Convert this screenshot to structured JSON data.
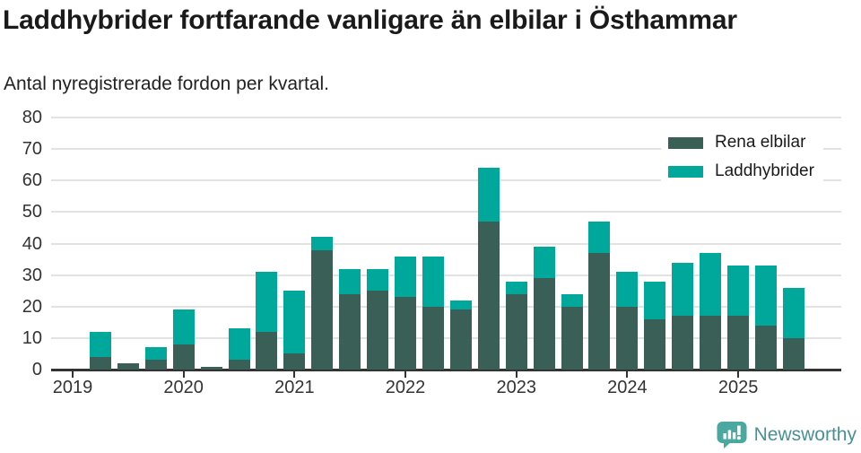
{
  "header": {
    "title": "Laddhybrider fortfarande vanligare än elbilar i Östhammar",
    "subtitle": "Antal nyregistrerade fordon per kvartal."
  },
  "colors": {
    "elbilar": "#3a5f57",
    "laddhybrider": "#00a89c",
    "axis_text": "#333333",
    "gridline": "#e2e2e2",
    "title_text": "#1a1a1a",
    "logo_bubble": "#4aa8a0",
    "logo_text": "#4a9097"
  },
  "legend": {
    "items": [
      {
        "label": "Rena elbilar",
        "color": "#3a5f57"
      },
      {
        "label": "Laddhybrider",
        "color": "#00a89c"
      }
    ]
  },
  "footer": {
    "brand": "Newsworthy"
  },
  "chart_data": {
    "type": "bar",
    "stacked": true,
    "title": "Laddhybrider fortfarande vanligare än elbilar i Östhammar",
    "subtitle": "Antal nyregistrerade fordon per kvartal.",
    "categories": [
      "2019 Q1",
      "2019 Q2",
      "2019 Q3",
      "2019 Q4",
      "2020 Q1",
      "2020 Q2",
      "2020 Q3",
      "2020 Q4",
      "2021 Q1",
      "2021 Q2",
      "2021 Q3",
      "2021 Q4",
      "2022 Q1",
      "2022 Q2",
      "2022 Q3",
      "2022 Q4",
      "2023 Q1",
      "2023 Q2",
      "2023 Q3",
      "2023 Q4",
      "2024 Q1",
      "2024 Q2",
      "2024 Q3",
      "2024 Q4",
      "2025 Q1",
      "2025 Q2",
      "2025 Q3"
    ],
    "series": [
      {
        "name": "Rena elbilar",
        "color": "#3a5f57",
        "values": [
          0,
          4,
          2,
          3,
          8,
          1,
          3,
          12,
          5,
          38,
          24,
          25,
          23,
          20,
          19,
          47,
          24,
          29,
          20,
          37,
          20,
          16,
          17,
          17,
          17,
          14,
          10
        ]
      },
      {
        "name": "Laddhybrider",
        "color": "#00a89c",
        "values": [
          0,
          8,
          0,
          4,
          11,
          0,
          10,
          19,
          20,
          4,
          8,
          7,
          13,
          16,
          3,
          17,
          4,
          10,
          4,
          10,
          11,
          12,
          17,
          20,
          16,
          19,
          16
        ]
      }
    ],
    "totals": [
      0,
      12,
      2,
      7,
      19,
      1,
      13,
      31,
      25,
      42,
      32,
      32,
      36,
      36,
      22,
      64,
      28,
      39,
      24,
      47,
      31,
      28,
      34,
      37,
      33,
      33,
      26
    ],
    "ylim": [
      0,
      80
    ],
    "yticks": [
      0,
      10,
      20,
      30,
      40,
      50,
      60,
      70,
      80
    ],
    "xticks": [
      {
        "label": "2019",
        "index": 0
      },
      {
        "label": "2020",
        "index": 4
      },
      {
        "label": "2021",
        "index": 8
      },
      {
        "label": "2022",
        "index": 12
      },
      {
        "label": "2023",
        "index": 16
      },
      {
        "label": "2024",
        "index": 20
      },
      {
        "label": "2025",
        "index": 24
      }
    ],
    "grid": true,
    "legend_position": "top-right"
  }
}
